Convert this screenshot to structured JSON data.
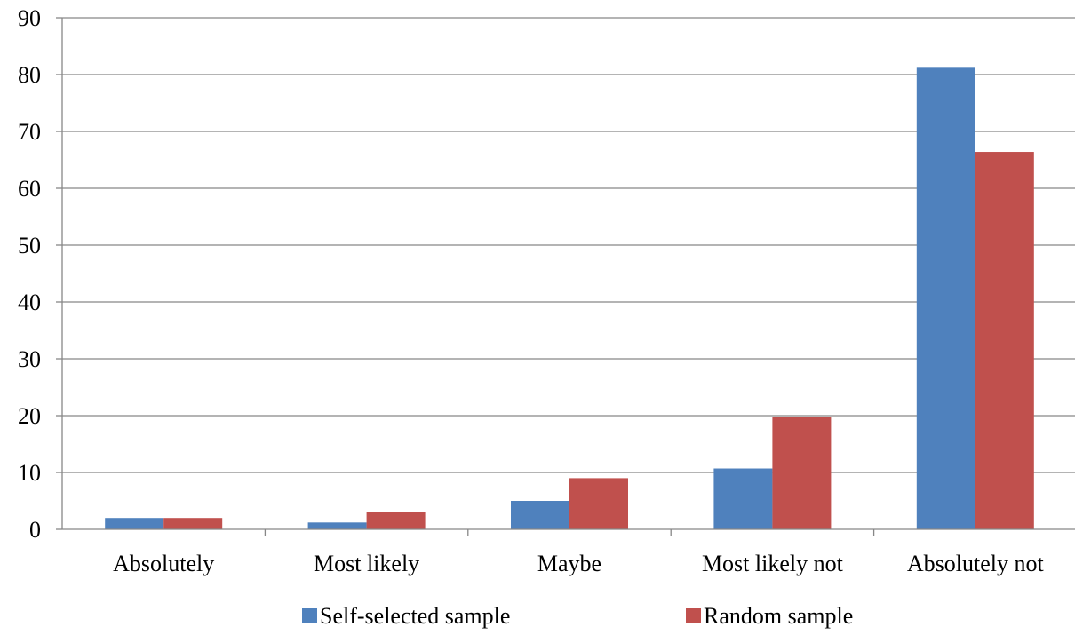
{
  "chart_data": {
    "type": "bar",
    "categories": [
      "Absolutely",
      "Most likely",
      "Maybe",
      "Most likely not",
      "Absolutely not"
    ],
    "series": [
      {
        "name": "Self-selected sample",
        "color": "#4F81BD",
        "values": [
          2,
          1.2,
          5,
          10.7,
          81.2
        ]
      },
      {
        "name": "Random sample",
        "color": "#C0504D",
        "values": [
          2,
          3,
          9,
          19.8,
          66.4
        ]
      }
    ],
    "ylim": [
      0,
      90
    ],
    "yticks": [
      0,
      10,
      20,
      30,
      40,
      50,
      60,
      70,
      80,
      90
    ],
    "grid": true,
    "legend_position": "bottom",
    "title": "",
    "xlabel": "",
    "ylabel": ""
  }
}
